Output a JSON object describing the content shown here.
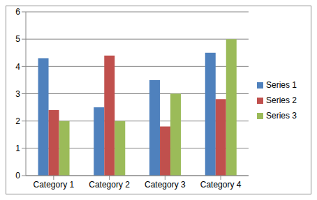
{
  "chart_data": {
    "type": "bar",
    "categories": [
      "Category 1",
      "Category 2",
      "Category 3",
      "Category 4"
    ],
    "series": [
      {
        "name": "Series 1",
        "color": "#4f81bd",
        "values": [
          4.3,
          2.5,
          3.5,
          4.5
        ]
      },
      {
        "name": "Series 2",
        "color": "#c0504d",
        "values": [
          2.4,
          4.4,
          1.8,
          2.8
        ]
      },
      {
        "name": "Series 3",
        "color": "#9bbb59",
        "values": [
          2,
          2,
          3,
          5
        ]
      }
    ],
    "ylim": [
      0,
      6
    ],
    "yticks": [
      0,
      1,
      2,
      3,
      4,
      5,
      6
    ],
    "grid": true,
    "legend": "right"
  }
}
